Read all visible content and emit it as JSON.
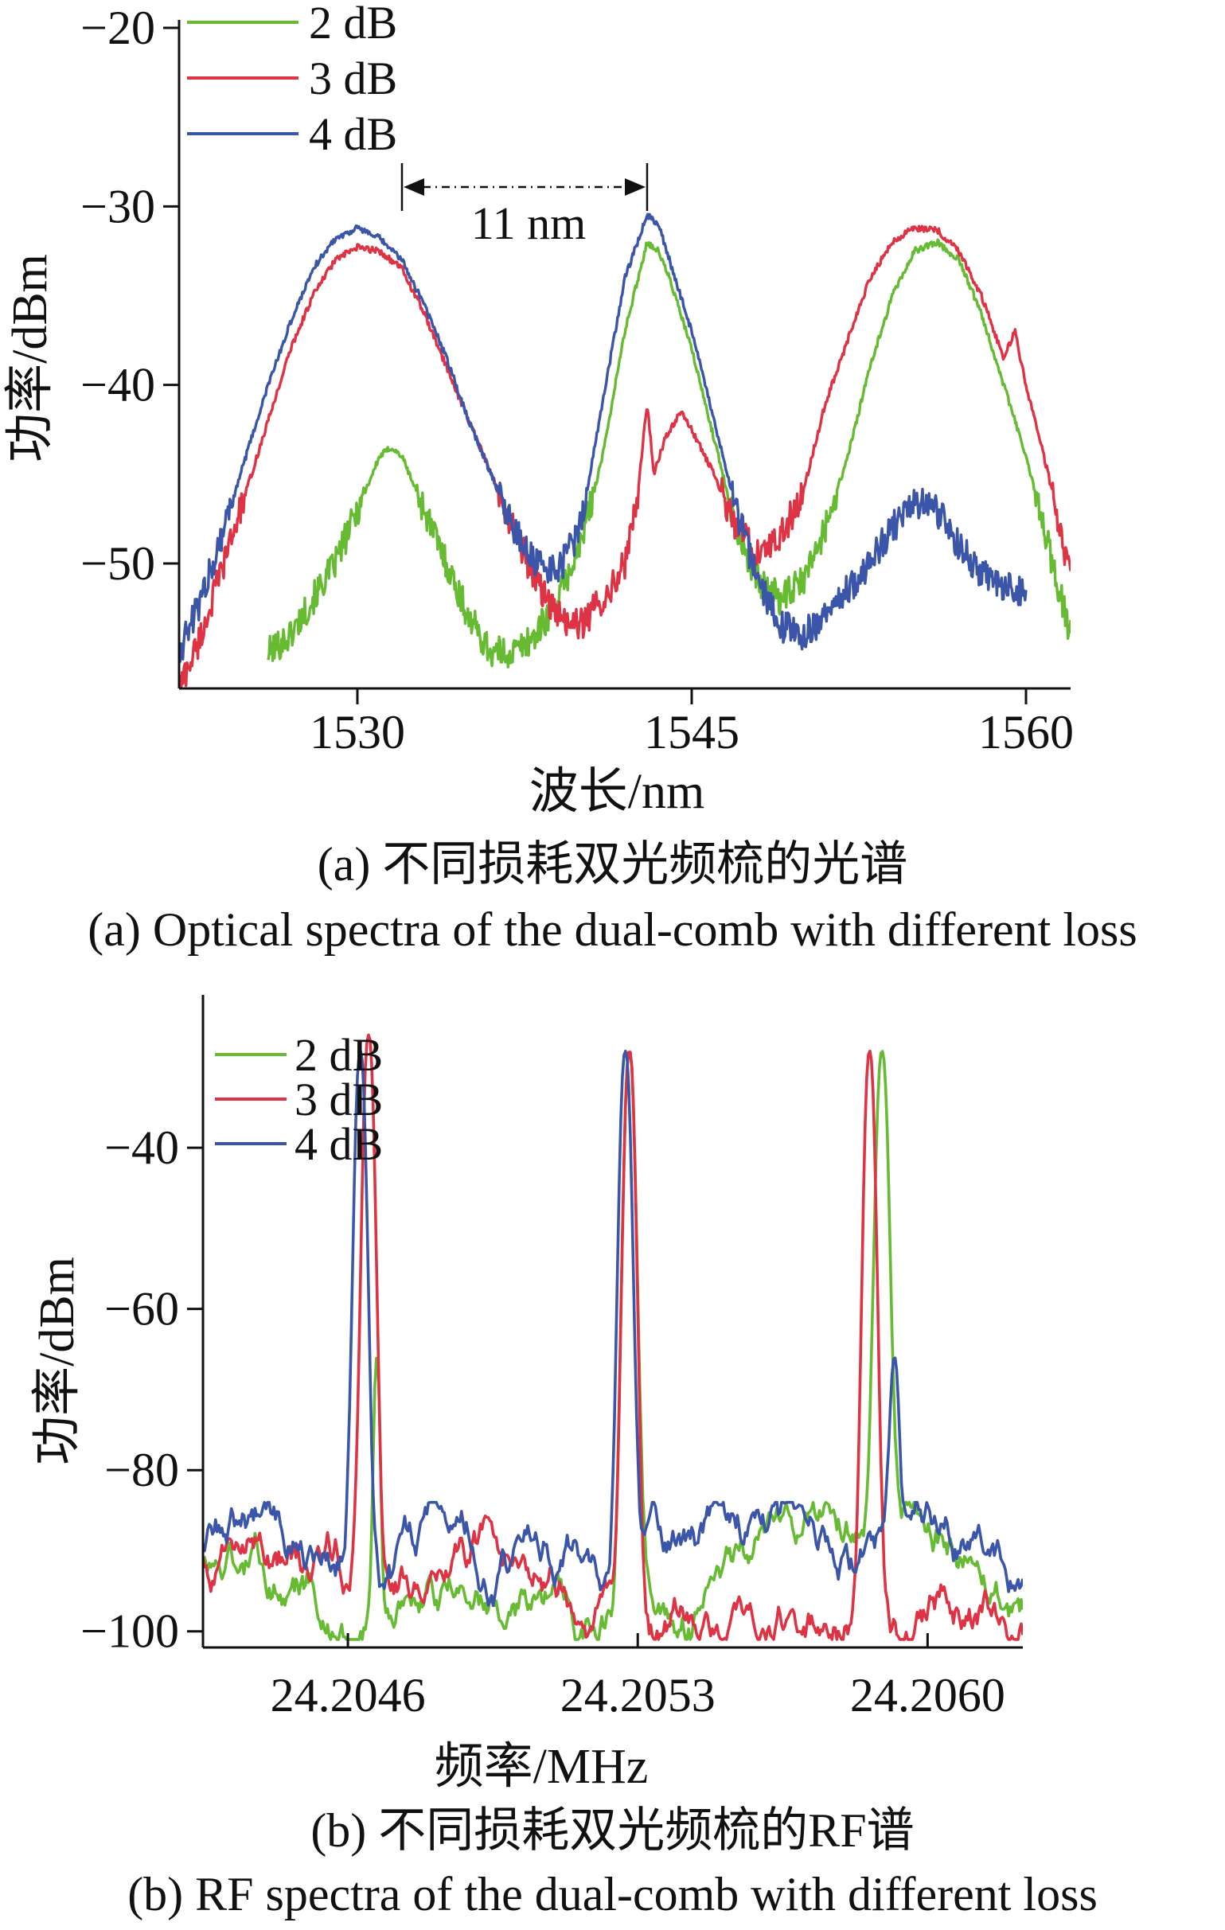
{
  "colors": {
    "2 dB": "#66bb33",
    "3 dB": "#dd3344",
    "4 dB": "#3b55a8",
    "axis": "#111111"
  },
  "captions": {
    "a_cn": "(a) 不同损耗双光频梳的光谱",
    "a_en": "(a) Optical spectra of the dual-comb with different loss",
    "b_cn": "(b) 不同损耗双光频梳的RF谱",
    "b_en": "(b) RF spectra of the dual-comb with different loss"
  },
  "chart_data": [
    {
      "type": "line",
      "xlabel": "波长/nm",
      "ylabel": "功率/dBm",
      "xlim": [
        1522,
        1562
      ],
      "ylim": [
        -57,
        -20
      ],
      "xticks": [
        1530,
        1545,
        1560
      ],
      "yticks": [
        -20,
        -30,
        -40,
        -50
      ],
      "legend_position": "top-left",
      "grid": false,
      "annotation": {
        "text": "11 nm",
        "from_x": 1532,
        "to_x": 1543
      },
      "series": [
        {
          "name": "2 dB",
          "points": [
            [
              1526,
              -55
            ],
            [
              1527,
              -54
            ],
            [
              1528,
              -52
            ],
            [
              1529,
              -50
            ],
            [
              1530,
              -47
            ],
            [
              1531,
              -44
            ],
            [
              1531.5,
              -43.5
            ],
            [
              1532,
              -44
            ],
            [
              1533,
              -47
            ],
            [
              1534,
              -50
            ],
            [
              1535,
              -53
            ],
            [
              1536,
              -55
            ],
            [
              1537,
              -55
            ],
            [
              1538,
              -54
            ],
            [
              1539,
              -52
            ],
            [
              1540,
              -49
            ],
            [
              1541,
              -44
            ],
            [
              1542,
              -37
            ],
            [
              1543,
              -32
            ],
            [
              1543.5,
              -32.5
            ],
            [
              1544,
              -34
            ],
            [
              1545,
              -38
            ],
            [
              1546,
              -43
            ],
            [
              1547,
              -48
            ],
            [
              1548,
              -51
            ],
            [
              1549,
              -52
            ],
            [
              1550,
              -51
            ],
            [
              1551,
              -48
            ],
            [
              1552,
              -44
            ],
            [
              1553,
              -39
            ],
            [
              1554,
              -35
            ],
            [
              1555,
              -32.5
            ],
            [
              1556,
              -32
            ],
            [
              1557,
              -33
            ],
            [
              1558,
              -36
            ],
            [
              1559,
              -40
            ],
            [
              1560,
              -44
            ],
            [
              1561,
              -49
            ],
            [
              1562,
              -54
            ]
          ]
        },
        {
          "name": "3 dB",
          "points": [
            [
              1522,
              -57
            ],
            [
              1523,
              -54
            ],
            [
              1524,
              -50
            ],
            [
              1525,
              -46
            ],
            [
              1526,
              -42
            ],
            [
              1527,
              -38
            ],
            [
              1528,
              -35
            ],
            [
              1529,
              -33
            ],
            [
              1530,
              -32.3
            ],
            [
              1531,
              -32.5
            ],
            [
              1532,
              -33.5
            ],
            [
              1533,
              -36
            ],
            [
              1534,
              -39
            ],
            [
              1535,
              -42
            ],
            [
              1536,
              -45
            ],
            [
              1537,
              -48
            ],
            [
              1538,
              -51
            ],
            [
              1539,
              -53
            ],
            [
              1540,
              -53.5
            ],
            [
              1541,
              -52
            ],
            [
              1542,
              -50
            ],
            [
              1542.5,
              -47
            ],
            [
              1543,
              -41
            ],
            [
              1543.3,
              -45
            ],
            [
              1543.8,
              -43
            ],
            [
              1544.5,
              -41.5
            ],
            [
              1545,
              -42.5
            ],
            [
              1546,
              -45
            ],
            [
              1547,
              -48
            ],
            [
              1548,
              -49.5
            ],
            [
              1549,
              -48.5
            ],
            [
              1550,
              -46
            ],
            [
              1551,
              -41
            ],
            [
              1552,
              -37.5
            ],
            [
              1553,
              -34
            ],
            [
              1554,
              -32
            ],
            [
              1555,
              -31.2
            ],
            [
              1556,
              -31.3
            ],
            [
              1557,
              -32.5
            ],
            [
              1558,
              -35
            ],
            [
              1559,
              -38.5
            ],
            [
              1559.5,
              -37
            ],
            [
              1560,
              -40
            ],
            [
              1561,
              -45
            ],
            [
              1562,
              -51
            ]
          ]
        },
        {
          "name": "4 dB",
          "points": [
            [
              1522,
              -55
            ],
            [
              1523,
              -52
            ],
            [
              1524,
              -48
            ],
            [
              1525,
              -44
            ],
            [
              1526,
              -40
            ],
            [
              1527,
              -36.5
            ],
            [
              1528,
              -33.5
            ],
            [
              1529,
              -31.8
            ],
            [
              1530,
              -31.2
            ],
            [
              1531,
              -31.8
            ],
            [
              1532,
              -33
            ],
            [
              1533,
              -35.5
            ],
            [
              1534,
              -38.5
            ],
            [
              1535,
              -42
            ],
            [
              1536,
              -45
            ],
            [
              1537,
              -48
            ],
            [
              1538,
              -50
            ],
            [
              1539,
              -50.5
            ],
            [
              1540,
              -48
            ],
            [
              1541,
              -41
            ],
            [
              1542,
              -34
            ],
            [
              1543,
              -30.5
            ],
            [
              1543.5,
              -31
            ],
            [
              1544,
              -33
            ],
            [
              1545,
              -37
            ],
            [
              1546,
              -42
            ],
            [
              1547,
              -47
            ],
            [
              1548,
              -51
            ],
            [
              1549,
              -53.5
            ],
            [
              1550,
              -54
            ],
            [
              1551,
              -53
            ],
            [
              1552,
              -51.5
            ],
            [
              1553,
              -50
            ],
            [
              1554,
              -48
            ],
            [
              1555,
              -46.5
            ],
            [
              1556,
              -47
            ],
            [
              1557,
              -49
            ],
            [
              1558,
              -50.5
            ],
            [
              1559,
              -51.3
            ],
            [
              1560,
              -51.8
            ]
          ]
        }
      ]
    },
    {
      "type": "line",
      "xlabel": "频率/MHz",
      "ylabel": "功率/dBm",
      "xlim": [
        24.20425,
        24.20623
      ],
      "ylim": [
        -102,
        -23
      ],
      "xticks": [
        24.2046,
        24.2053,
        24.206
      ],
      "xtick_labels": [
        "24.2046",
        "24.2053",
        "24.2060"
      ],
      "yticks": [
        -40,
        -60,
        -80,
        -100
      ],
      "legend_position": "top-left",
      "grid": false,
      "series": [
        {
          "name": "2 dB",
          "peaks": [
            [
              24.20467,
              -66,
              1.2e-05
            ],
            [
              24.20528,
              -28,
              2.5e-05
            ],
            [
              24.20589,
              -28,
              2.5e-05
            ]
          ]
        },
        {
          "name": "3 dB",
          "peaks": [
            [
              24.20465,
              -26,
              2.5e-05
            ],
            [
              24.20528,
              -28,
              2.5e-05
            ],
            [
              24.20586,
              -28,
              2.5e-05
            ]
          ]
        },
        {
          "name": "4 dB",
          "peaks": [
            [
              24.20463,
              -28,
              2.5e-05
            ],
            [
              24.20527,
              -28,
              2.5e-05
            ],
            [
              24.20592,
              -66,
              1.5e-05
            ]
          ]
        }
      ]
    }
  ]
}
